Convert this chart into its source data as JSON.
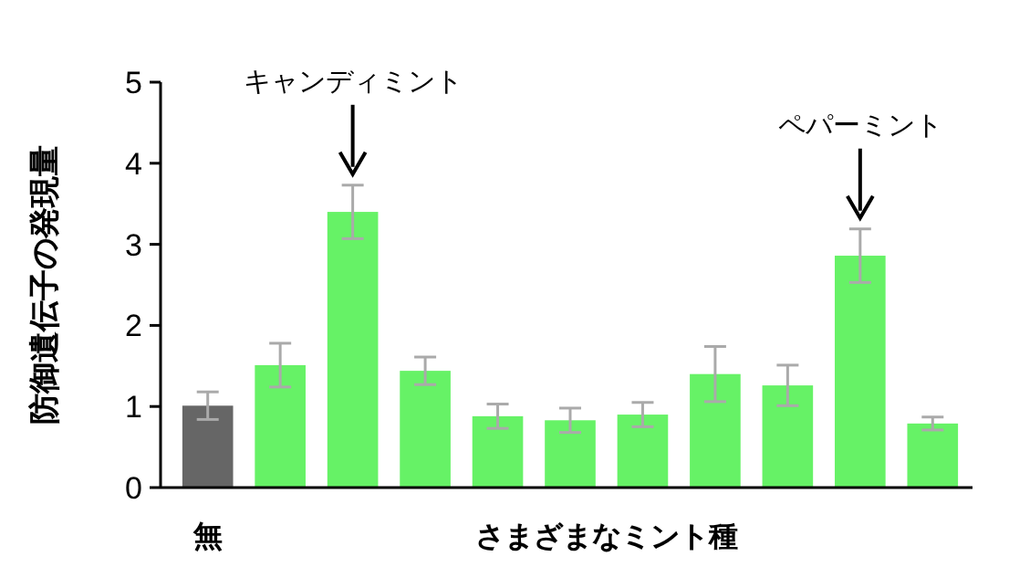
{
  "chart_data": {
    "type": "bar",
    "xlabel": "さまざまなミント種",
    "ylabel": "防御遺伝子の発現量",
    "categories": [
      "無",
      null,
      null,
      null,
      null,
      null,
      null,
      null,
      null,
      null,
      null
    ],
    "values": [
      1.01,
      1.51,
      3.4,
      1.44,
      0.88,
      0.83,
      0.9,
      1.4,
      1.26,
      2.86,
      0.79
    ],
    "colors": [
      "#666666",
      "#66f266",
      "#66f266",
      "#66f266",
      "#66f266",
      "#66f266",
      "#66f266",
      "#66f266",
      "#66f266",
      "#66f266",
      "#66f266"
    ],
    "errors": [
      0.17,
      0.27,
      0.33,
      0.17,
      0.15,
      0.15,
      0.15,
      0.34,
      0.25,
      0.33,
      0.08
    ],
    "annotations": [
      "キャンディミント",
      "ペパーミント"
    ],
    "ylim": [
      0,
      5
    ],
    "yticks": [
      0,
      1,
      2,
      3,
      4,
      5
    ],
    "grid": false
  }
}
